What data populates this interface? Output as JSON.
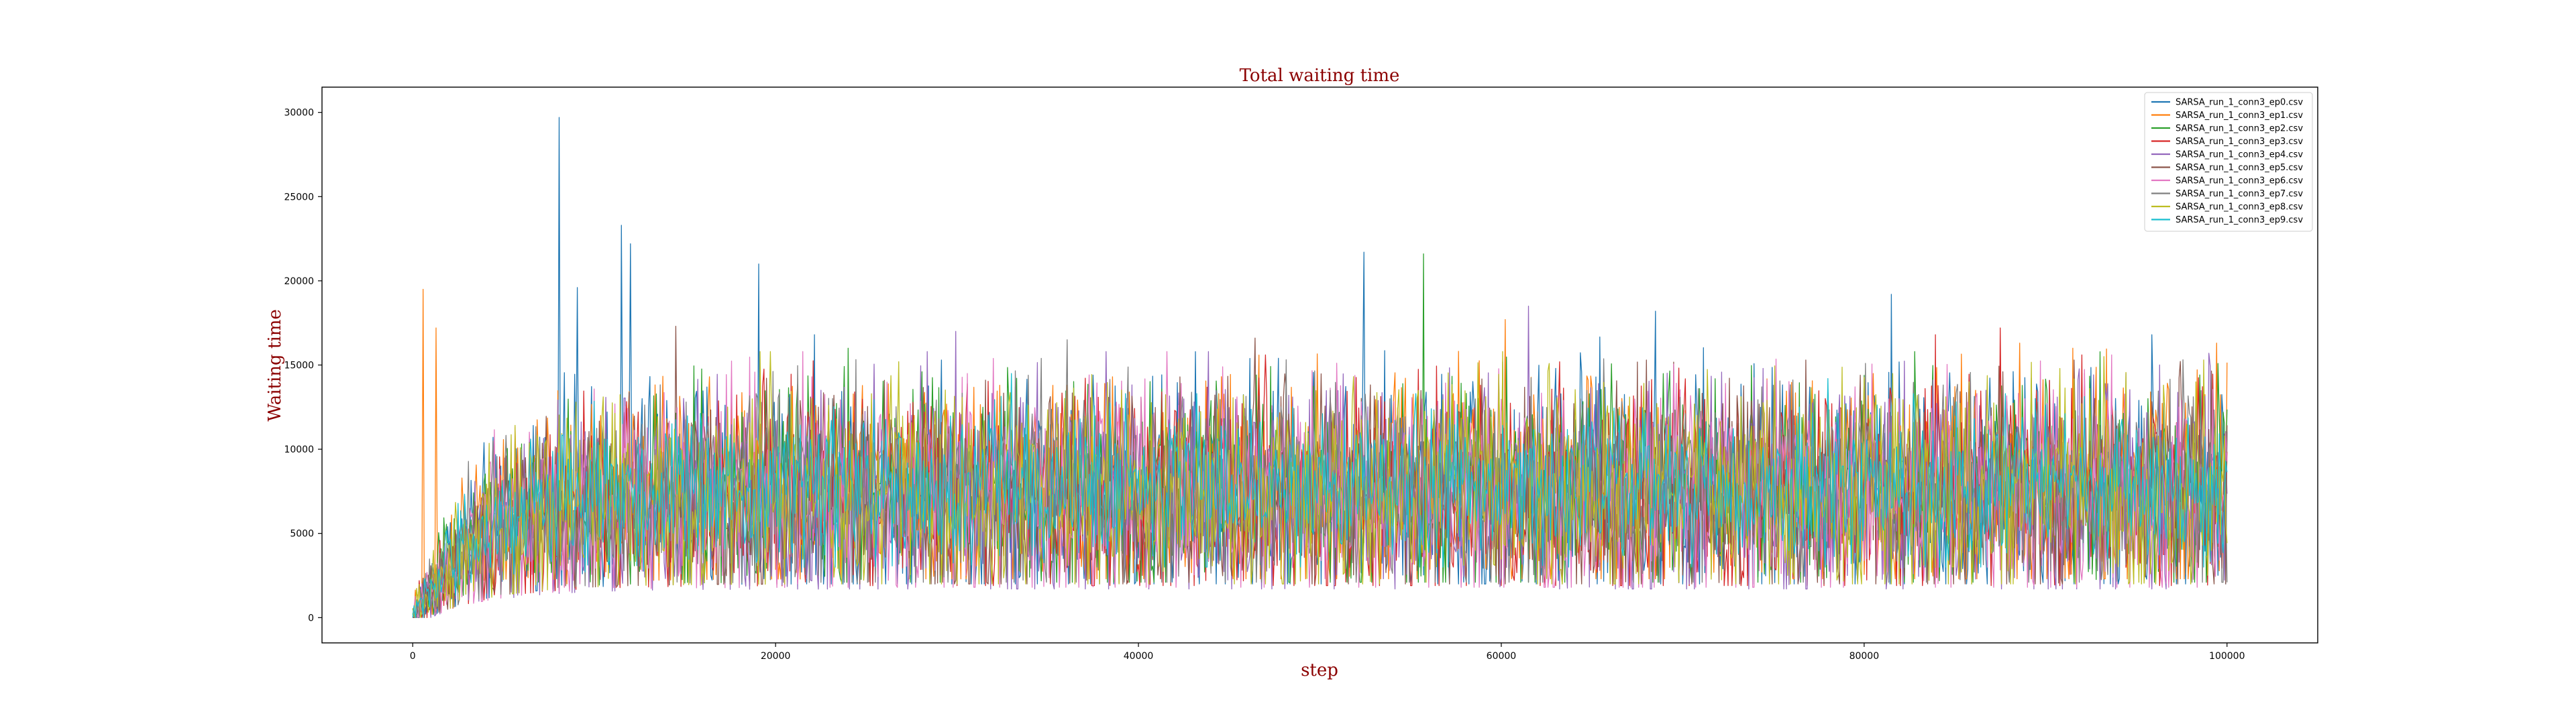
{
  "chart_data": {
    "type": "line",
    "title": "Total waiting time",
    "xlabel": "step",
    "ylabel": "Waiting time",
    "xlim": [
      -5000,
      105000
    ],
    "ylim": [
      -1500,
      31500
    ],
    "xticks": [
      0,
      20000,
      40000,
      60000,
      80000,
      100000
    ],
    "yticks": [
      0,
      5000,
      10000,
      15000,
      20000,
      25000,
      30000
    ],
    "xtick_labels": [
      "0",
      "20000",
      "40000",
      "60000",
      "80000",
      "100000"
    ],
    "ytick_labels": [
      "0",
      "5000",
      "10000",
      "15000",
      "20000",
      "25000",
      "30000"
    ],
    "grid": false,
    "legend_position": "top-right",
    "x_range": [
      0,
      100000
    ],
    "series": [
      {
        "name": "SARSA_run_1_conn3_ep0.csv",
        "color": "#1f77b4",
        "summary": {
          "start": 0,
          "plateau_mean": 7500,
          "low": 2500,
          "high": 16000
        },
        "peaks": [
          [
            8100,
            29700
          ],
          [
            9100,
            19600
          ],
          [
            11500,
            23300
          ],
          [
            12000,
            22200
          ],
          [
            19100,
            21000
          ],
          [
            52400,
            21700
          ],
          [
            68500,
            18200
          ],
          [
            81500,
            19200
          ]
        ]
      },
      {
        "name": "SARSA_run_1_conn3_ep1.csv",
        "color": "#ff7f0e",
        "summary": {
          "start": 0,
          "plateau_mean": 7600,
          "low": 2800,
          "high": 15500
        },
        "peaks": [
          [
            600,
            19500
          ],
          [
            1300,
            17200
          ],
          [
            60200,
            17700
          ],
          [
            91500,
            16000
          ]
        ]
      },
      {
        "name": "SARSA_run_1_conn3_ep2.csv",
        "color": "#2ca02c",
        "summary": {
          "start": 0,
          "plateau_mean": 7400,
          "low": 2600,
          "high": 15000
        },
        "peaks": [
          [
            55700,
            21600
          ],
          [
            24000,
            16000
          ]
        ]
      },
      {
        "name": "SARSA_run_1_conn3_ep3.csv",
        "color": "#d62728",
        "summary": {
          "start": 0,
          "plateau_mean": 7300,
          "low": 2400,
          "high": 14800
        },
        "peaks": [
          [
            87500,
            17200
          ],
          [
            83900,
            16800
          ]
        ]
      },
      {
        "name": "SARSA_run_1_conn3_ep4.csv",
        "color": "#9467bd",
        "summary": {
          "start": 0,
          "plateau_mean": 7200,
          "low": 2200,
          "high": 15000
        },
        "peaks": [
          [
            29900,
            17000
          ],
          [
            61500,
            18500
          ],
          [
            99000,
            15700
          ]
        ]
      },
      {
        "name": "SARSA_run_1_conn3_ep5.csv",
        "color": "#8c564b",
        "summary": {
          "start": 0,
          "plateau_mean": 7300,
          "low": 2500,
          "high": 14500
        },
        "peaks": [
          [
            46400,
            16600
          ],
          [
            14500,
            17300
          ]
        ]
      },
      {
        "name": "SARSA_run_1_conn3_ep6.csv",
        "color": "#e377c2",
        "summary": {
          "start": 0,
          "plateau_mean": 7400,
          "low": 2300,
          "high": 14800
        },
        "peaks": [
          [
            21500,
            15800
          ],
          [
            41600,
            15800
          ]
        ]
      },
      {
        "name": "SARSA_run_1_conn3_ep7.csv",
        "color": "#7f7f7f",
        "summary": {
          "start": 0,
          "plateau_mean": 7300,
          "low": 2600,
          "high": 14600
        },
        "peaks": [
          [
            36100,
            16500
          ]
        ]
      },
      {
        "name": "SARSA_run_1_conn3_ep8.csv",
        "color": "#bcbd22",
        "summary": {
          "start": 0,
          "plateau_mean": 7400,
          "low": 2500,
          "high": 15000
        },
        "peaks": [
          [
            93200,
            15500
          ],
          [
            26800,
            15200
          ]
        ]
      },
      {
        "name": "SARSA_run_1_conn3_ep9.csv",
        "color": "#17becf",
        "summary": {
          "start": 0,
          "plateau_mean": 7800,
          "low": 3500,
          "high": 12500
        },
        "peaks": [
          [
            33000,
            14500
          ],
          [
            78000,
            14200
          ]
        ]
      }
    ]
  }
}
